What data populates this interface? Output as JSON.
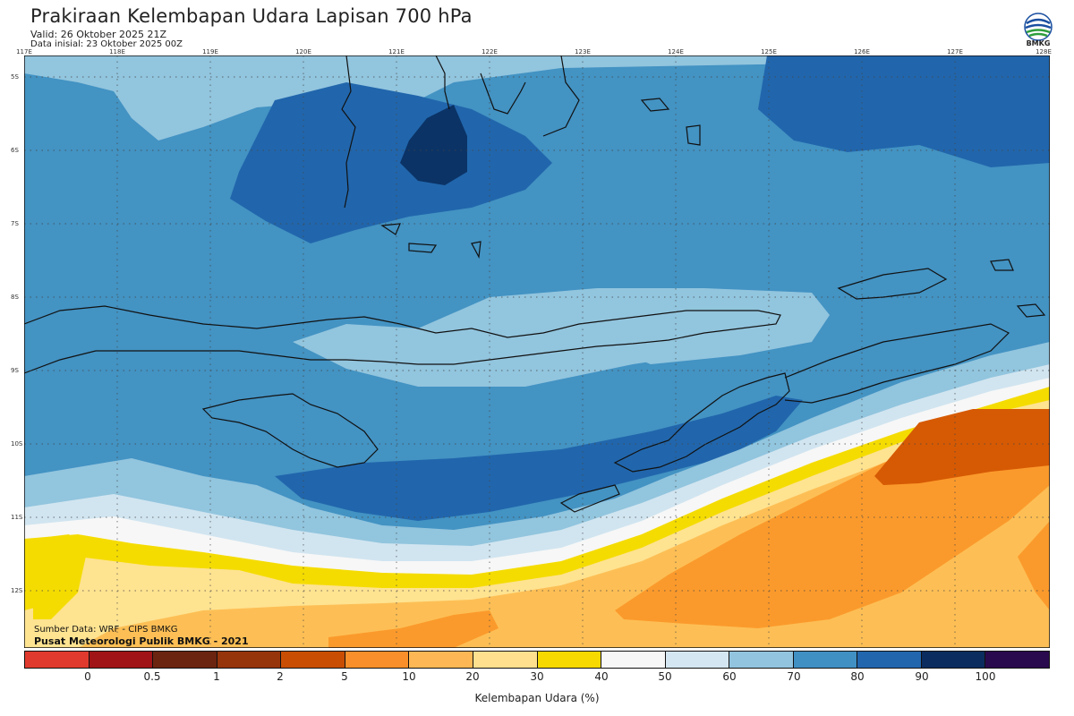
{
  "header": {
    "title": "Prakiraan Kelembapan Udara Lapisan 700 hPa",
    "valid": "Valid: 26 Oktober 2025 21Z",
    "initial": "Data inisial: 23 Oktober 2025 00Z",
    "logo_text": "BMKG"
  },
  "map": {
    "longitude_labels": [
      "117E",
      "118E",
      "119E",
      "120E",
      "121E",
      "122E",
      "123E",
      "124E",
      "125E",
      "126E",
      "127E",
      "128E"
    ],
    "latitude_labels": [
      "5S",
      "6S",
      "7S",
      "8S",
      "9S",
      "10S",
      "11S",
      "12S"
    ],
    "palette": {
      "humid_90_100": "#0b3366",
      "humid_80_90": "#2166ac",
      "humid_70_80": "#4393c3",
      "humid_60_70": "#92c5de",
      "humid_50_60": "#d1e5f0",
      "humid_40_50": "#f7f7f7",
      "humid_30_40": "#f5dc00",
      "humid_20_30": "#fee391",
      "humid_10_20": "#fdbf55",
      "humid_5_10": "#fb9a2c",
      "humid_2_5": "#d65a04",
      "coast": "#111111"
    },
    "source_line1": "Sumber Data: WRF - CIPS BMKG",
    "source_line2": "Pusat Meteorologi Publik BMKG - 2021"
  },
  "colorbar": {
    "title": "Kelembapan Udara (%)",
    "tick_labels": [
      "0",
      "0.5",
      "1",
      "2",
      "5",
      "10",
      "20",
      "30",
      "40",
      "50",
      "60",
      "70",
      "80",
      "90",
      "100"
    ],
    "segment_colors": [
      "#e03a2e",
      "#a01417",
      "#6b2410",
      "#96340c",
      "#c94e04",
      "#f88f2a",
      "#fdb855",
      "#fee08f",
      "#f7d900",
      "#f7f7f7",
      "#d4e6f1",
      "#93c4df",
      "#4090c4",
      "#2266ae",
      "#0b2c5e",
      "#2a0a4e"
    ]
  }
}
